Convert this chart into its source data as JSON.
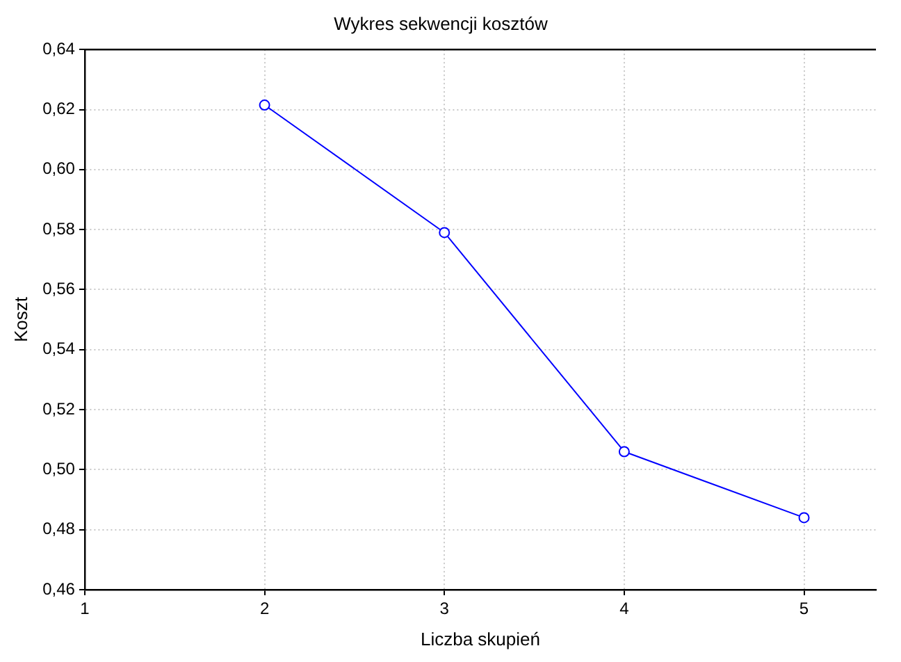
{
  "chart_data": {
    "type": "line",
    "title": "Wykres sekwencji kosztów",
    "xlabel": "Liczba skupień",
    "ylabel": "Koszt",
    "x": [
      2,
      3,
      4,
      5
    ],
    "series": [
      {
        "color": "#0000ff",
        "values": [
          0.6215,
          0.579,
          0.506,
          0.484
        ]
      }
    ],
    "xlim": [
      1,
      5.4
    ],
    "xticks": [
      1,
      2,
      3,
      4,
      5
    ],
    "ylim": [
      0.46,
      0.64
    ],
    "yticks": [
      {
        "value": 0.46,
        "label": "0,46"
      },
      {
        "value": 0.48,
        "label": "0,48"
      },
      {
        "value": 0.5,
        "label": "0,50"
      },
      {
        "value": 0.52,
        "label": "0,52"
      },
      {
        "value": 0.54,
        "label": "0,54"
      },
      {
        "value": 0.56,
        "label": "0,56"
      },
      {
        "value": 0.58,
        "label": "0,58"
      },
      {
        "value": 0.6,
        "label": "0,60"
      },
      {
        "value": 0.62,
        "label": "0,62"
      },
      {
        "value": 0.64,
        "label": "0,64"
      }
    ],
    "grid": true,
    "legend": false,
    "marker": "circle",
    "line_style": "solid"
  }
}
